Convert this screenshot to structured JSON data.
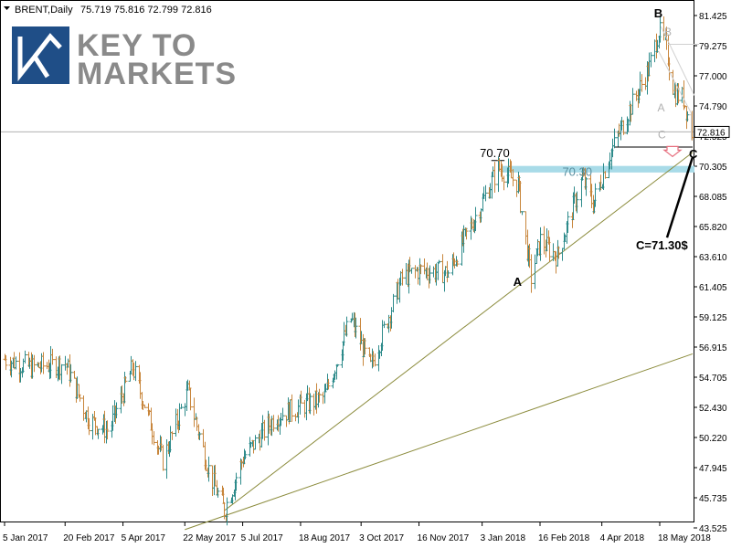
{
  "chart_data": {
    "type": "candlestick",
    "header": {
      "symbol": "BRENT,Daily",
      "ohlc": "75.719 75.816 72.799 72.816"
    },
    "last_price": "72.816",
    "y_ticks": [
      "81.425",
      "79.275",
      "77.000",
      "74.790",
      "72.525",
      "70.305",
      "68.085",
      "65.820",
      "63.610",
      "61.405",
      "59.125",
      "56.915",
      "54.705",
      "52.430",
      "50.220",
      "47.945",
      "45.735",
      "43.525"
    ],
    "x_ticks": [
      "5 Jan 2017",
      "20 Feb 2017",
      "5 Apr 2017",
      "22 May 2017",
      "5 Jul 2017",
      "18 Aug 2017",
      "3 Oct 2017",
      "16 Nov 2017",
      "3 Jan 2018",
      "16 Feb 2018",
      "4 Apr 2018",
      "18 May 2018"
    ],
    "ylim": [
      43.525,
      81.425
    ],
    "anchor_prices": [
      {
        "date": "2017-01-05",
        "price": 56.0
      },
      {
        "date": "2017-01-25",
        "price": 55.4
      },
      {
        "date": "2017-02-20",
        "price": 55.7
      },
      {
        "date": "2017-03-10",
        "price": 51.5
      },
      {
        "date": "2017-03-25",
        "price": 50.7
      },
      {
        "date": "2017-04-12",
        "price": 55.4
      },
      {
        "date": "2017-05-05",
        "price": 48.5
      },
      {
        "date": "2017-05-24",
        "price": 53.6
      },
      {
        "date": "2017-06-10",
        "price": 47.5
      },
      {
        "date": "2017-06-21",
        "price": 44.8
      },
      {
        "date": "2017-07-05",
        "price": 48.7
      },
      {
        "date": "2017-07-30",
        "price": 51.8
      },
      {
        "date": "2017-08-18",
        "price": 52.5
      },
      {
        "date": "2017-09-05",
        "price": 53.2
      },
      {
        "date": "2017-09-25",
        "price": 59.0
      },
      {
        "date": "2017-10-10",
        "price": 55.4
      },
      {
        "date": "2017-11-03",
        "price": 62.0
      },
      {
        "date": "2017-11-16",
        "price": 62.6
      },
      {
        "date": "2017-12-08",
        "price": 62.4
      },
      {
        "date": "2017-12-28",
        "price": 66.4
      },
      {
        "date": "2018-01-15",
        "price": 70.2
      },
      {
        "date": "2018-01-30",
        "price": 69.0
      },
      {
        "date": "2018-02-09",
        "price": 62.0
      },
      {
        "date": "2018-02-16",
        "price": 64.8
      },
      {
        "date": "2018-03-01",
        "price": 63.6
      },
      {
        "date": "2018-03-20",
        "price": 69.4
      },
      {
        "date": "2018-03-28",
        "price": 67.5
      },
      {
        "date": "2018-04-10",
        "price": 71.2
      },
      {
        "date": "2018-04-25",
        "price": 74.5
      },
      {
        "date": "2018-05-10",
        "price": 77.6
      },
      {
        "date": "2018-05-17",
        "price": 80.3
      },
      {
        "date": "2018-05-22",
        "price": 79.4
      },
      {
        "date": "2018-05-29",
        "price": 75.7
      },
      {
        "date": "2018-06-05",
        "price": 75.3
      },
      {
        "date": "2018-06-11",
        "price": 72.8
      }
    ],
    "annotations": {
      "A": "A",
      "B": "B",
      "C": "C",
      "a_small": "A",
      "b_small": "B",
      "c_small": "C",
      "peak_label": "70.70",
      "zone_label": "70.30",
      "target": "C=71.30$"
    },
    "levels": {
      "peak": 70.7,
      "zone_high": 70.3,
      "zone_low": 69.95
    },
    "trendlines": [
      {
        "from": {
          "date": "2017-06-21",
          "price": 44.8
        },
        "to": {
          "date": "2018-06-12",
          "price": 71.3
        }
      },
      {
        "from": {
          "date": "2017-05-22",
          "price": 43.4
        },
        "to": {
          "date": "2018-06-12",
          "price": 56.4
        }
      }
    ],
    "colors": {
      "up": "#2e8b8b",
      "down": "#c8863c",
      "trendline": "#8b8b3c",
      "zone": "#a8dbe8",
      "grid_line": "#b0b0b0",
      "arrow": "#e76f7f"
    }
  },
  "brand": {
    "line1": "KEY TO",
    "line2": "MARKETS",
    "logo_icon": "k-logo-icon",
    "logo_color": "#1f4e87"
  }
}
